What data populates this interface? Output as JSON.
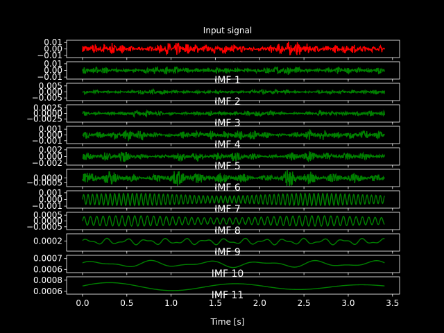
{
  "chart_data": {
    "type": "line",
    "title": "Input signal",
    "xlabel": "Time [s]",
    "xlim": [
      -0.18,
      3.58
    ],
    "xticks": [
      "0.0",
      "0.5",
      "1.0",
      "1.5",
      "2.0",
      "2.5",
      "3.0",
      "3.5"
    ],
    "colors": {
      "input": "#ff0000",
      "imf": "#008000",
      "text": "#ffffff",
      "background": "#000000"
    },
    "panels": [
      {
        "name": "Input signal",
        "label": "",
        "color": "#ff0000",
        "yticks": [
          "0.01",
          "0.00",
          "−0.01"
        ],
        "ytick_values": [
          0.01,
          0.0,
          -0.01
        ],
        "ylim": [
          -0.0135,
          0.0135
        ],
        "amplitude": 0.0085,
        "wave": "noise",
        "freq": 60,
        "sub_xlabel": ""
      },
      {
        "name": "IMF 1",
        "label": "IMF 1",
        "color": "#008000",
        "yticks": [
          "0.01",
          "0.00",
          "−0.01"
        ],
        "ytick_values": [
          0.01,
          0.0,
          -0.01
        ],
        "ylim": [
          -0.013,
          0.013
        ],
        "amplitude": 0.0055,
        "wave": "noise",
        "freq": 55,
        "sub_xlabel": "Time [s]"
      },
      {
        "name": "IMF 2",
        "label": "IMF 2",
        "color": "#008000",
        "yticks": [
          "0.005",
          "0.000",
          "−0.005"
        ],
        "ytick_values": [
          0.005,
          0.0,
          -0.005
        ],
        "ylim": [
          -0.0072,
          0.0072
        ],
        "amplitude": 0.0018,
        "wave": "noise",
        "freq": 50,
        "sub_xlabel": "Time [s]"
      },
      {
        "name": "IMF 3",
        "label": "IMF 3",
        "color": "#008000",
        "yticks": [
          "0.0025",
          "0.0000",
          "−0.0025"
        ],
        "ytick_values": [
          0.0025,
          0.0,
          -0.0025
        ],
        "ylim": [
          -0.0038,
          0.0038
        ],
        "amplitude": 0.0011,
        "wave": "noise",
        "freq": 45,
        "sub_xlabel": "Time [s]"
      },
      {
        "name": "IMF 4",
        "label": "IMF 4",
        "color": "#008000",
        "yticks": [
          "0.001",
          "0.000",
          "−0.001"
        ],
        "ytick_values": [
          0.001,
          0.0,
          -0.001
        ],
        "ylim": [
          -0.0015,
          0.0015
        ],
        "amplitude": 0.0008,
        "wave": "noise",
        "freq": 40,
        "sub_xlabel": "Time [s]"
      },
      {
        "name": "IMF 5",
        "label": "IMF 5",
        "color": "#008000",
        "yticks": [
          "0.002",
          "0.000",
          "−0.002"
        ],
        "ytick_values": [
          0.002,
          0.0,
          -0.002
        ],
        "ylim": [
          -0.0026,
          0.0026
        ],
        "amplitude": 0.0013,
        "wave": "noise",
        "freq": 30,
        "sub_xlabel": "Time [s]"
      },
      {
        "name": "IMF 6",
        "label": "IMF 6",
        "color": "#008000",
        "yticks": [
          "0.0000",
          "−0.0005"
        ],
        "ytick_values": [
          0.0,
          -0.0005
        ],
        "ylim": [
          -0.0009,
          0.0009
        ],
        "amplitude": 0.00065,
        "wave": "noise",
        "freq": 25,
        "sub_xlabel": "Time [s]"
      },
      {
        "name": "IMF 7",
        "label": "IMF 7",
        "color": "#008000",
        "yticks": [
          "0.001",
          "0.000",
          "−0.001"
        ],
        "ytick_values": [
          0.001,
          0.0,
          -0.001
        ],
        "ylim": [
          -0.0013,
          0.0013
        ],
        "amplitude": 0.0009,
        "wave": "sine",
        "freq": 20,
        "sub_xlabel": "Time [s]"
      },
      {
        "name": "IMF 8",
        "label": "IMF 8",
        "color": "#008000",
        "yticks": [
          "0.0005",
          "0.0000",
          "−0.0005"
        ],
        "ytick_values": [
          0.0005,
          0.0,
          -0.0005
        ],
        "ylim": [
          -0.00075,
          0.00075
        ],
        "amplitude": 0.00045,
        "wave": "sine",
        "freq": 14,
        "sub_xlabel": "Time [s]"
      },
      {
        "name": "IMF 9",
        "label": "IMF 9",
        "color": "#008000",
        "yticks": [
          "0.0002"
        ],
        "ytick_values": [
          0.0002
        ],
        "ylim": [
          3e-05,
          0.00032
        ],
        "amplitude": 5e-05,
        "wave": "smooth",
        "freq": 4.5,
        "center": 0.00019,
        "sub_xlabel": "Time [s]"
      },
      {
        "name": "IMF 10",
        "label": "IMF 10",
        "color": "#008000",
        "yticks": [
          "0.0007",
          "0.0006"
        ],
        "ytick_values": [
          0.0007,
          0.0006
        ],
        "ylim": [
          0.00057,
          0.00073
        ],
        "amplitude": 3e-05,
        "wave": "smooth",
        "freq": 1.6,
        "center": 0.00065,
        "sub_xlabel": "Time [s]"
      },
      {
        "name": "IMF 11",
        "label": "IMF 11",
        "color": "#008000",
        "yticks": [
          "0.0008",
          "0.0006"
        ],
        "ytick_values": [
          0.0008,
          0.0006
        ],
        "ylim": [
          0.00055,
          0.00086
        ],
        "amplitude": 8e-05,
        "wave": "trend",
        "freq": 0.7,
        "center": 0.00068,
        "sub_xlabel": "Time [s]"
      }
    ]
  }
}
